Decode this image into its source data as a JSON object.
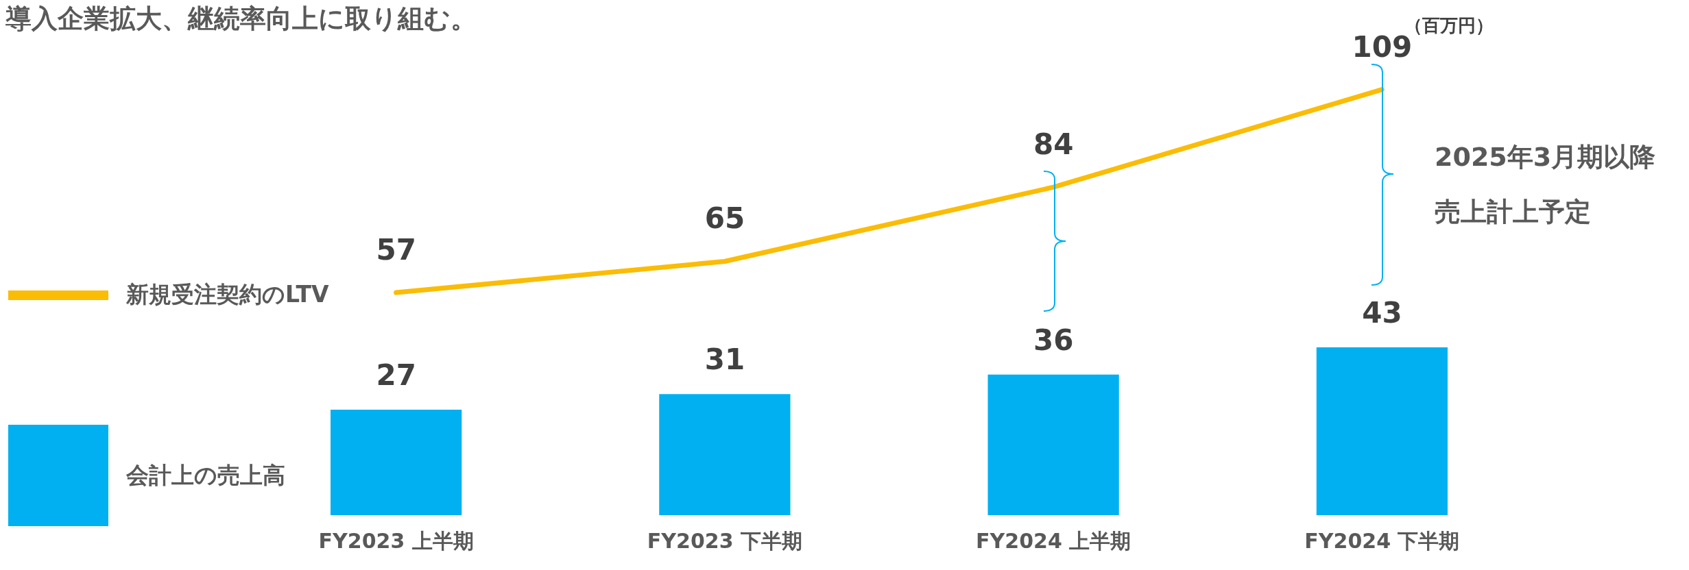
{
  "chart_data": {
    "type": "bar",
    "title": "導入企業拡大、継続率向上に取り組む。",
    "categories": [
      "FY2023 上半期",
      "FY2023 下半期",
      "FY2024 上半期",
      "FY2024 下半期"
    ],
    "series": [
      {
        "name": "新規受注契約のLTV",
        "type": "line",
        "color": "#fbbc05",
        "values": [
          57,
          65,
          84,
          109
        ]
      },
      {
        "name": "会計上の売上高",
        "color": "#00b0f0",
        "values": [
          27,
          31,
          36,
          43
        ]
      }
    ],
    "annotations": [
      "（百万円）",
      "2025年3月期以降",
      "売上計上予定"
    ],
    "data_labels": true,
    "grid": false,
    "legend": "left",
    "tick_labels": "x"
  }
}
